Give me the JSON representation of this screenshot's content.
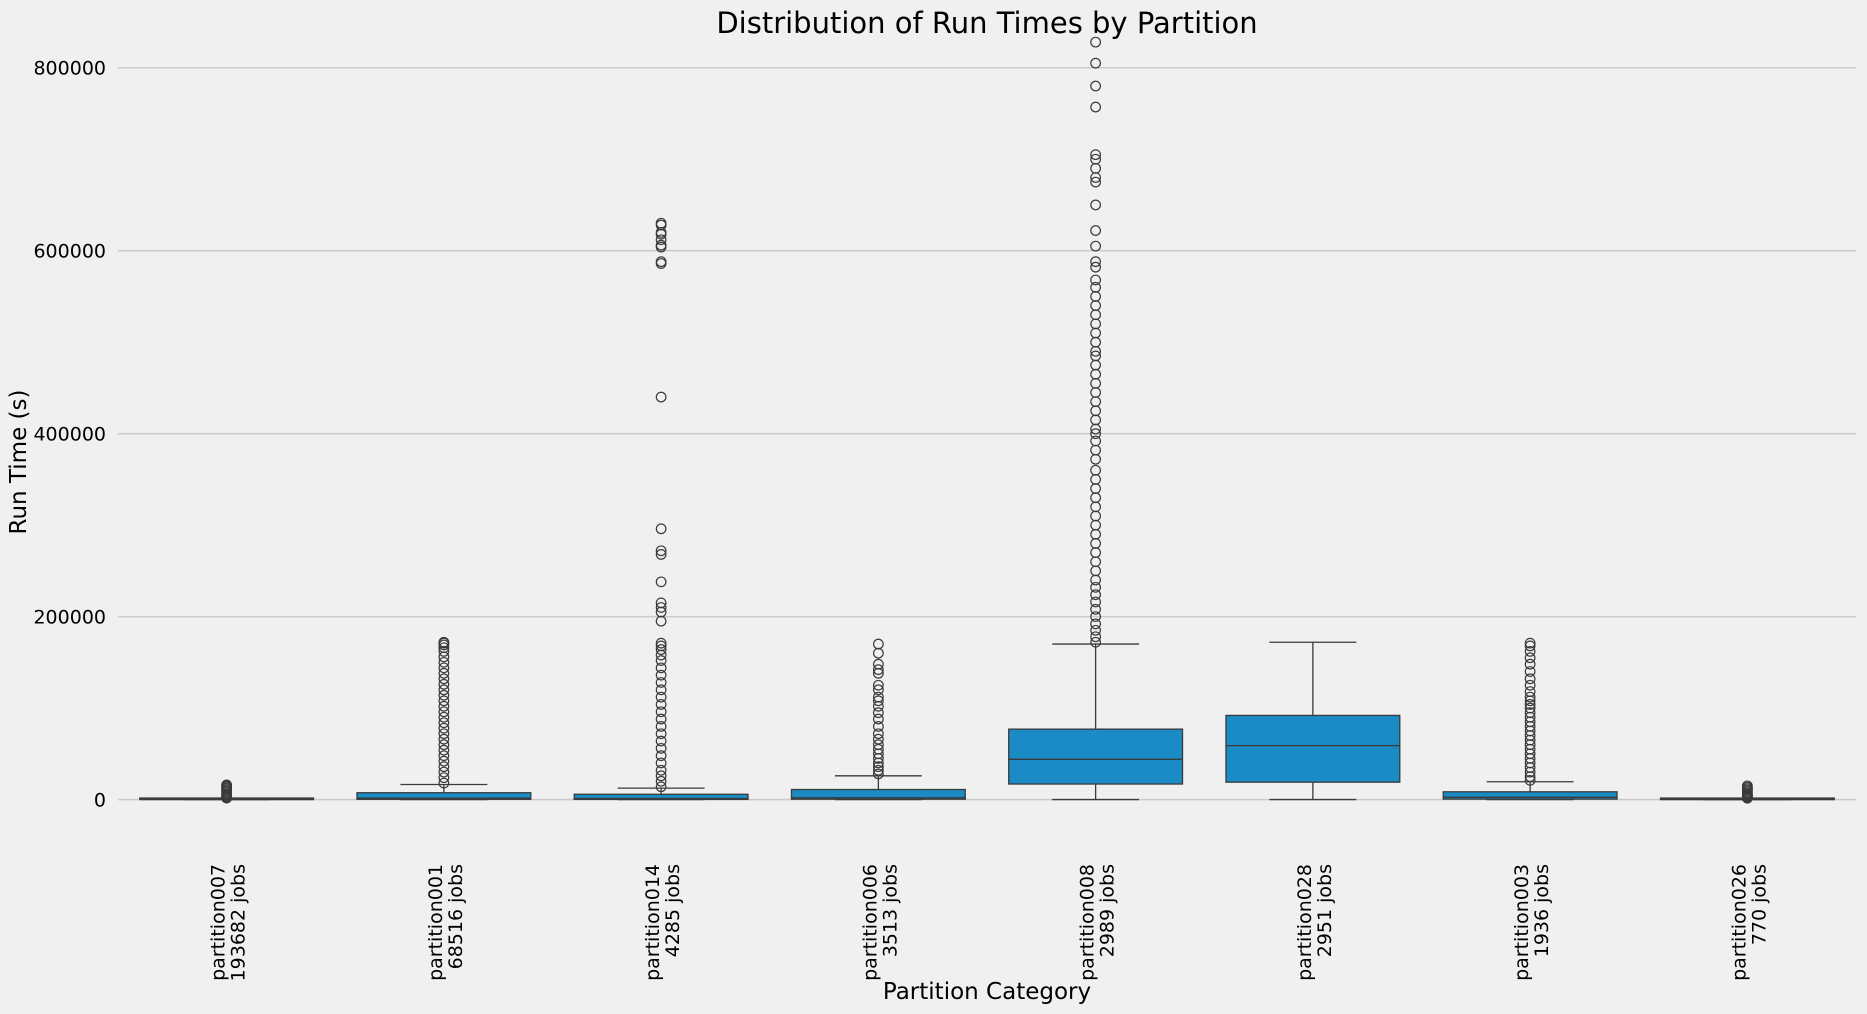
{
  "chart_data": {
    "type": "box",
    "title": "Distribution of Run Times by Partition",
    "xlabel": "Partition Category",
    "ylabel": "Run Time (s)",
    "ylim": [
      -42000,
      850000
    ],
    "yticks": [
      0,
      200000,
      400000,
      600000,
      800000
    ],
    "grid": "horizontal",
    "colors": {
      "box": "#1a8bc4",
      "line": "#3a3a3a",
      "grid": "#cbcbcb",
      "background": "#f0f0f0"
    },
    "categories": [
      {
        "name": "partition007",
        "jobs": "193682 jobs",
        "min": 0,
        "q1": 60,
        "median": 180,
        "q3": 600,
        "max": 1400,
        "outliers": [
          1600,
          2500,
          3500,
          5000,
          6500,
          8000,
          9500,
          11000,
          12500,
          14000,
          15000,
          16000
        ]
      },
      {
        "name": "partition001",
        "jobs": "68516 jobs",
        "min": 0,
        "q1": 300,
        "median": 1500,
        "q3": 7500,
        "max": 16500,
        "outliers": [
          18000,
          24000,
          30000,
          36000,
          42000,
          48000,
          54000,
          60000,
          66000,
          72000,
          78000,
          84000,
          90000,
          96000,
          102000,
          108000,
          114000,
          120000,
          126000,
          132000,
          138000,
          144000,
          150000,
          156000,
          162000,
          166000,
          169000,
          171000,
          172000
        ]
      },
      {
        "name": "partition014",
        "jobs": "4285 jobs",
        "min": 0,
        "q1": 200,
        "median": 1200,
        "q3": 5800,
        "max": 12500,
        "outliers": [
          14000,
          20000,
          26000,
          32000,
          40000,
          48000,
          56000,
          64000,
          72000,
          80000,
          88000,
          96000,
          104000,
          112000,
          120000,
          128000,
          136000,
          144000,
          152000,
          158000,
          164000,
          168000,
          171000,
          195000,
          205000,
          210000,
          215000,
          238000,
          268000,
          272000,
          296000,
          440000,
          586000,
          588000,
          604000,
          606000,
          612000,
          618000,
          620000,
          628000,
          630000
        ]
      },
      {
        "name": "partition006",
        "jobs": "3513 jobs",
        "min": 0,
        "q1": 400,
        "median": 2000,
        "q3": 11000,
        "max": 26000,
        "outliers": [
          28000,
          32000,
          36000,
          40000,
          45000,
          50000,
          55000,
          60000,
          66000,
          72000,
          80000,
          88000,
          95000,
          102000,
          108000,
          112000,
          120000,
          125000,
          138000,
          142000,
          148000,
          160000,
          170000
        ]
      },
      {
        "name": "partition008",
        "jobs": "2989 jobs",
        "min": 0,
        "q1": 17000,
        "median": 44000,
        "q3": 77000,
        "max": 170000,
        "outliers": [
          172000,
          178000,
          185000,
          192000,
          200000,
          208000,
          216000,
          224000,
          232000,
          240000,
          250000,
          260000,
          270000,
          280000,
          290000,
          300000,
          310000,
          320000,
          330000,
          340000,
          350000,
          360000,
          372000,
          382000,
          392000,
          400000,
          405000,
          415000,
          425000,
          435000,
          445000,
          455000,
          465000,
          475000,
          485000,
          490000,
          500000,
          510000,
          520000,
          530000,
          540000,
          550000,
          560000,
          568000,
          582000,
          588000,
          605000,
          622000,
          650000,
          675000,
          680000,
          690000,
          700000,
          705000,
          757000,
          780000,
          805000,
          828000
        ]
      },
      {
        "name": "partition028",
        "jobs": "2951 jobs",
        "min": 0,
        "q1": 19000,
        "median": 59000,
        "q3": 92000,
        "max": 172000,
        "outliers": []
      },
      {
        "name": "partition003",
        "jobs": "1936 jobs",
        "min": 0,
        "q1": 500,
        "median": 2500,
        "q3": 8500,
        "max": 19500,
        "outliers": [
          21000,
          25000,
          30000,
          35000,
          40000,
          45000,
          50000,
          55000,
          60000,
          65000,
          70000,
          75000,
          80000,
          85000,
          90000,
          95000,
          100000,
          104000,
          108000,
          112000,
          118000,
          125000,
          132000,
          140000,
          148000,
          155000,
          162000,
          168000,
          171000
        ]
      },
      {
        "name": "partition026",
        "jobs": "770 jobs",
        "min": 0,
        "q1": 40,
        "median": 150,
        "q3": 500,
        "max": 1300,
        "outliers": [
          1500,
          2200,
          3000,
          4000,
          5000,
          6200,
          7500,
          9000,
          10500,
          12000,
          13500,
          15000
        ]
      }
    ]
  }
}
